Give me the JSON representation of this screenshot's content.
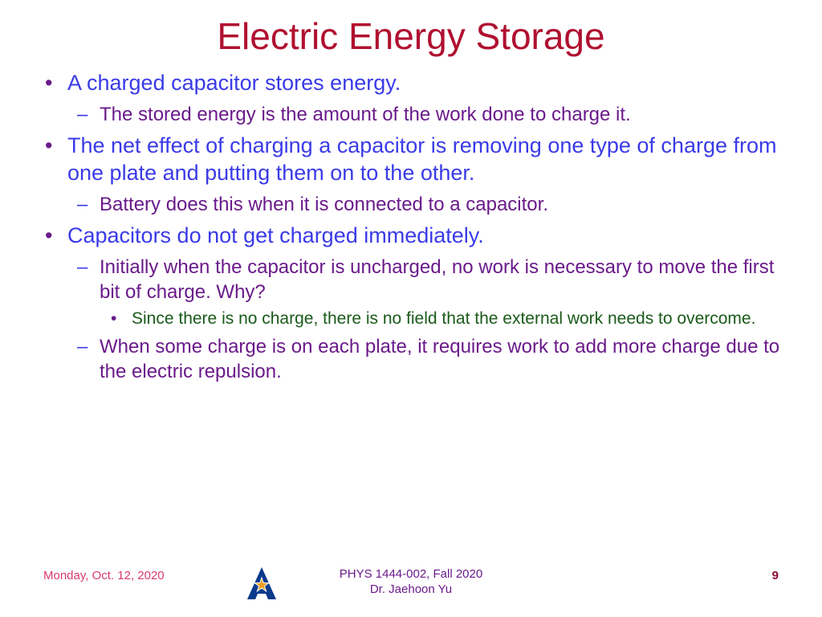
{
  "colors": {
    "title": "#b01030",
    "level1_text": "#3a3ae8",
    "level1_bullet": "#6a1a8a",
    "level2_text": "#6a1a8a",
    "level2_bullet": "#3a3ae8",
    "level3_text": "#1a5a1a",
    "level3_bullet": "#6a1a8a",
    "footer_date": "#d83a6a",
    "footer_center": "#6a1a8a",
    "footer_page": "#8a1030",
    "logo_blue": "#0a3a8a",
    "logo_star_fill": "#e8a020",
    "logo_star_stroke": "#ffffff",
    "background": "#ffffff"
  },
  "fontsizes": {
    "title": 46,
    "level1": 27,
    "level2": 24,
    "level3": 21,
    "footer": 15
  },
  "title": "Electric Energy Storage",
  "bullets": [
    {
      "text": "A charged capacitor stores energy.",
      "children": [
        {
          "text": "The stored energy is the amount of the work done to charge it."
        }
      ]
    },
    {
      "text": "The net effect of charging a capacitor is removing one type of charge from one plate and putting them on to the other.",
      "children": [
        {
          "text": "Battery does this when it is connected to a capacitor."
        }
      ]
    },
    {
      "text": "Capacitors do not get charged immediately.",
      "children": [
        {
          "text": "Initially when the capacitor is uncharged, no work is necessary to move the first bit of charge.  Why?",
          "children": [
            {
              "text": "Since there is no charge, there is no field that the external work needs to overcome."
            }
          ]
        },
        {
          "text": "When some charge is on each plate, it requires work to add more charge due to the electric repulsion."
        }
      ]
    }
  ],
  "footer": {
    "date": "Monday, Oct. 12, 2020",
    "course": "PHYS 1444-002, Fall 2020",
    "instructor": "Dr. Jaehoon Yu",
    "page": "9"
  }
}
